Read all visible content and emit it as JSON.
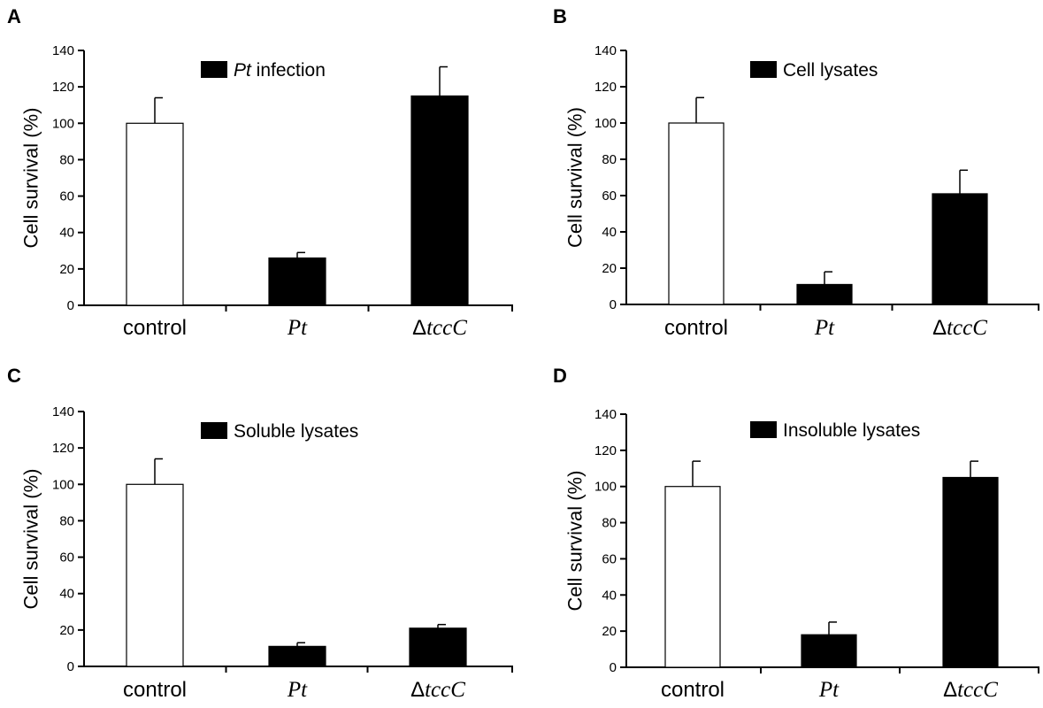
{
  "chart_data": [
    {
      "type": "bar",
      "panel": "A",
      "ylabel": "Cell survival (%)",
      "ylim": [
        0,
        140
      ],
      "yticks": [
        0,
        20,
        40,
        60,
        80,
        100,
        120,
        140
      ],
      "categories": [
        {
          "label": "control",
          "style": "plain"
        },
        {
          "label": "Pt",
          "style": "italic"
        },
        {
          "prefix": "Δ",
          "label": "tccC",
          "style": "italic"
        }
      ],
      "values": [
        100,
        26,
        115
      ],
      "errors": [
        14,
        3,
        16
      ],
      "fills": [
        "#ffffff",
        "#000000",
        "#000000"
      ],
      "legend": {
        "italic": "Pt",
        "text": "infection"
      }
    },
    {
      "type": "bar",
      "panel": "B",
      "ylabel": "Cell survival (%)",
      "ylim": [
        0,
        140
      ],
      "yticks": [
        0,
        20,
        40,
        60,
        80,
        100,
        120,
        140
      ],
      "categories": [
        {
          "label": "control",
          "style": "plain"
        },
        {
          "label": "Pt",
          "style": "italic"
        },
        {
          "prefix": "Δ",
          "label": "tccC",
          "style": "italic"
        }
      ],
      "values": [
        100,
        11,
        61
      ],
      "errors": [
        14,
        7,
        13
      ],
      "fills": [
        "#ffffff",
        "#000000",
        "#000000"
      ],
      "legend": {
        "italic": "",
        "text": "Cell lysates"
      }
    },
    {
      "type": "bar",
      "panel": "C",
      "ylabel": "Cell survival (%)",
      "ylim": [
        0,
        140
      ],
      "yticks": [
        0,
        20,
        40,
        60,
        80,
        100,
        120,
        140
      ],
      "categories": [
        {
          "label": "control",
          "style": "plain"
        },
        {
          "label": "Pt",
          "style": "italic"
        },
        {
          "prefix": "Δ",
          "label": "tccC",
          "style": "italic"
        }
      ],
      "values": [
        100,
        11,
        21
      ],
      "errors": [
        14,
        2,
        2
      ],
      "fills": [
        "#ffffff",
        "#000000",
        "#000000"
      ],
      "legend": {
        "italic": "",
        "text": "Soluble lysates"
      }
    },
    {
      "type": "bar",
      "panel": "D",
      "ylabel": "Cell survival (%)",
      "ylim": [
        0,
        140
      ],
      "yticks": [
        0,
        20,
        40,
        60,
        80,
        100,
        120,
        140
      ],
      "categories": [
        {
          "label": "control",
          "style": "plain"
        },
        {
          "label": "Pt",
          "style": "italic"
        },
        {
          "prefix": "Δ",
          "label": "tccC",
          "style": "italic"
        }
      ],
      "values": [
        100,
        18,
        105
      ],
      "errors": [
        14,
        7,
        9
      ],
      "fills": [
        "#ffffff",
        "#000000",
        "#000000"
      ],
      "legend": {
        "italic": "",
        "text": "Insoluble lysates"
      }
    }
  ]
}
